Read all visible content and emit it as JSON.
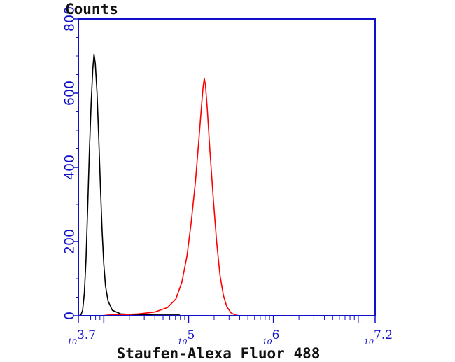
{
  "chart_data": {
    "type": "line",
    "ylabel": "Counts",
    "xlabel": "Staufen-Alexa Fluor 488",
    "xscale": "log10",
    "xlim_exp": [
      3.7,
      7.2
    ],
    "ylim": [
      0,
      800
    ],
    "yticks": [
      0,
      200,
      400,
      600,
      800
    ],
    "xtick_labels": [
      {
        "base": "10",
        "exp": "3.7",
        "value_exp": 3.7
      },
      {
        "base": "10",
        "exp": "5",
        "value_exp": 5
      },
      {
        "base": "10",
        "exp": "6",
        "value_exp": 6
      },
      {
        "base": "10",
        "exp": "7.2",
        "value_exp": 7.2
      }
    ],
    "grid": false,
    "series": [
      {
        "color": "#000000",
        "points": [
          [
            3.7,
            0
          ],
          [
            3.73,
            2
          ],
          [
            3.75,
            15
          ],
          [
            3.77,
            60
          ],
          [
            3.79,
            150
          ],
          [
            3.81,
            290
          ],
          [
            3.83,
            440
          ],
          [
            3.85,
            570
          ],
          [
            3.87,
            665
          ],
          [
            3.885,
            705
          ],
          [
            3.9,
            680
          ],
          [
            3.92,
            600
          ],
          [
            3.94,
            480
          ],
          [
            3.96,
            350
          ],
          [
            3.98,
            230
          ],
          [
            4.0,
            140
          ],
          [
            4.02,
            80
          ],
          [
            4.05,
            40
          ],
          [
            4.1,
            15
          ],
          [
            4.2,
            5
          ],
          [
            4.4,
            3
          ],
          [
            4.6,
            2
          ],
          [
            4.75,
            2
          ],
          [
            4.89,
            2
          ],
          [
            4.9,
            0
          ]
        ]
      },
      {
        "color": "#ff0000",
        "points": [
          [
            3.98,
            0
          ],
          [
            4.05,
            2
          ],
          [
            4.2,
            3
          ],
          [
            4.4,
            5
          ],
          [
            4.6,
            10
          ],
          [
            4.75,
            22
          ],
          [
            4.85,
            45
          ],
          [
            4.92,
            90
          ],
          [
            4.98,
            160
          ],
          [
            5.03,
            250
          ],
          [
            5.08,
            360
          ],
          [
            5.12,
            470
          ],
          [
            5.15,
            560
          ],
          [
            5.17,
            615
          ],
          [
            5.185,
            640
          ],
          [
            5.2,
            620
          ],
          [
            5.22,
            560
          ],
          [
            5.25,
            450
          ],
          [
            5.29,
            320
          ],
          [
            5.33,
            200
          ],
          [
            5.37,
            110
          ],
          [
            5.41,
            55
          ],
          [
            5.45,
            25
          ],
          [
            5.5,
            8
          ],
          [
            5.55,
            2
          ],
          [
            5.6,
            0
          ]
        ]
      }
    ]
  }
}
